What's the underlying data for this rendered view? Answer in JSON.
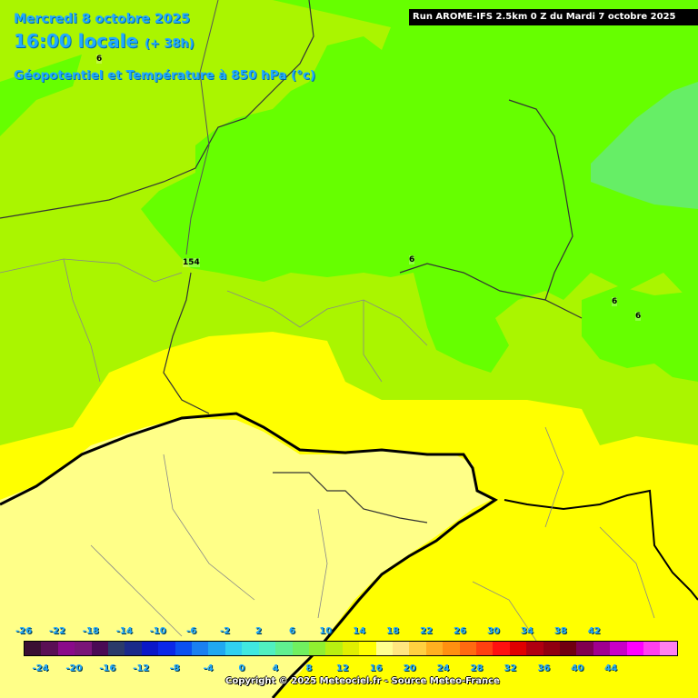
{
  "header": {
    "date": "Mercredi 8 octobre 2025",
    "time": "16:00 locale",
    "lead": "(+ 38h)",
    "parameter": "Géopotentiel et Température à 850 hPa (°c)",
    "run": "Run AROME-IFS 2.5km 0 Z du Mardi 7 octobre 2025"
  },
  "map_labels": {
    "iso_6_a": "6",
    "iso_154": "154",
    "iso_6_b": "6",
    "iso_6_c": "6",
    "iso_6_d": "6"
  },
  "legend": {
    "upper_ticks": [
      "-26",
      "-22",
      "-18",
      "-14",
      "-10",
      "-6",
      "-2",
      "2",
      "6",
      "10",
      "14",
      "18",
      "22",
      "26",
      "30",
      "34",
      "38",
      "42"
    ],
    "lower_ticks": [
      "-24",
      "-20",
      "-16",
      "-12",
      "-8",
      "-4",
      "0",
      "4",
      "8",
      "12",
      "16",
      "20",
      "24",
      "28",
      "32",
      "36",
      "40",
      "44"
    ],
    "colors": [
      "#3a0f33",
      "#5a0f55",
      "#8a0a8a",
      "#7a1478",
      "#4a0a55",
      "#2a3a6a",
      "#1a2a8a",
      "#0a18c8",
      "#0a28e8",
      "#0a50f0",
      "#1a80f0",
      "#20a8f0",
      "#30d0f0",
      "#40e8e0",
      "#50f0c0",
      "#60f090",
      "#70f060",
      "#90f030",
      "#b8f010",
      "#e0f000",
      "#ffff00",
      "#ffff90",
      "#ffe680",
      "#ffd040",
      "#ffb020",
      "#ff9010",
      "#ff6a10",
      "#ff4010",
      "#ff1010",
      "#e00000",
      "#b00010",
      "#900010",
      "#700010",
      "#800050",
      "#a00090",
      "#c800c8",
      "#ff00ff",
      "#ff40f0",
      "#ff80f0"
    ],
    "copyright": "Copyright © 2025 Meteociel.fr - Source Meteo-France"
  },
  "colors": {
    "zone_green": "#66ff00",
    "zone_lime": "#aaf500",
    "zone_yellow": "#ffff00",
    "zone_pale": "#ffff88",
    "zone_cyan_green": "#66ee66"
  }
}
